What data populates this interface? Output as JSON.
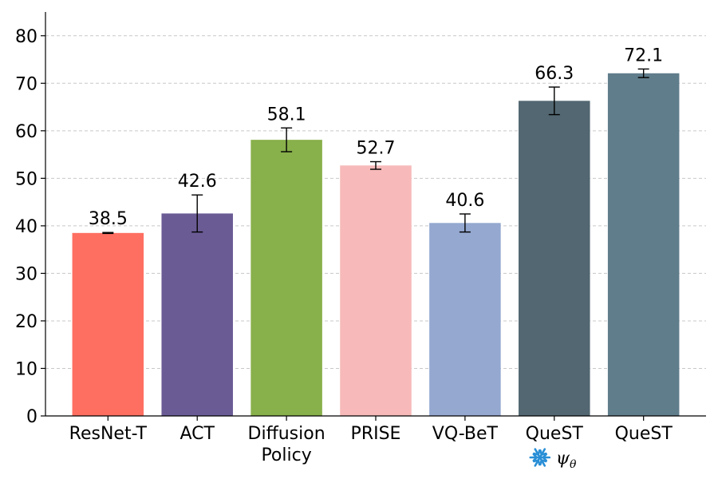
{
  "chart_data": {
    "type": "bar",
    "categories": [
      [
        "ResNet-T"
      ],
      [
        "ACT"
      ],
      [
        "Diffusion",
        "Policy"
      ],
      [
        "PRISE"
      ],
      [
        "VQ-BeT"
      ],
      [
        "QueST"
      ],
      [
        "QueST"
      ]
    ],
    "values": [
      38.5,
      42.6,
      58.1,
      52.7,
      40.6,
      66.3,
      72.1
    ],
    "errors": [
      0.1,
      3.9,
      2.5,
      0.8,
      1.9,
      2.9,
      0.9
    ],
    "colors": [
      "#ff6f61",
      "#6b5b95",
      "#88b04b",
      "#f7b9b9",
      "#94a8d0",
      "#526771",
      "#607d8b"
    ],
    "ylim": [
      0,
      85
    ],
    "yticks": [
      0,
      10,
      20,
      30,
      40,
      50,
      60,
      70,
      80
    ],
    "grid": true,
    "title": "",
    "xlabel": "",
    "ylabel": "",
    "sublabel": {
      "category_index": 5,
      "icon": "snowflake-icon",
      "icon_color": "#2a8fd6",
      "symbol": "ψ",
      "subscript": "θ"
    }
  }
}
